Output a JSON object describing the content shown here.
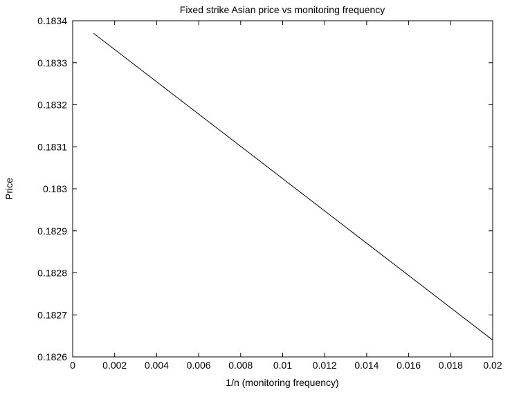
{
  "chart_data": {
    "type": "line",
    "title": "Fixed strike Asian price vs monitoring frequency",
    "xlabel": "1/n (monitoring frequency)",
    "ylabel": "Price",
    "xlim": [
      0,
      0.02
    ],
    "ylim": [
      0.1826,
      0.1834
    ],
    "x_ticks": [
      "0",
      "0.002",
      "0.004",
      "0.006",
      "0.008",
      "0.01",
      "0.012",
      "0.014",
      "0.016",
      "0.018",
      "0.02"
    ],
    "y_ticks": [
      "0.1826",
      "0.1827",
      "0.1828",
      "0.1829",
      "0.183",
      "0.1831",
      "0.1832",
      "0.1833",
      "0.1834"
    ],
    "grid": false,
    "series": [
      {
        "color": "#000000",
        "x": [
          0.001,
          0.02
        ],
        "y": [
          0.18337,
          0.18264
        ]
      }
    ]
  }
}
